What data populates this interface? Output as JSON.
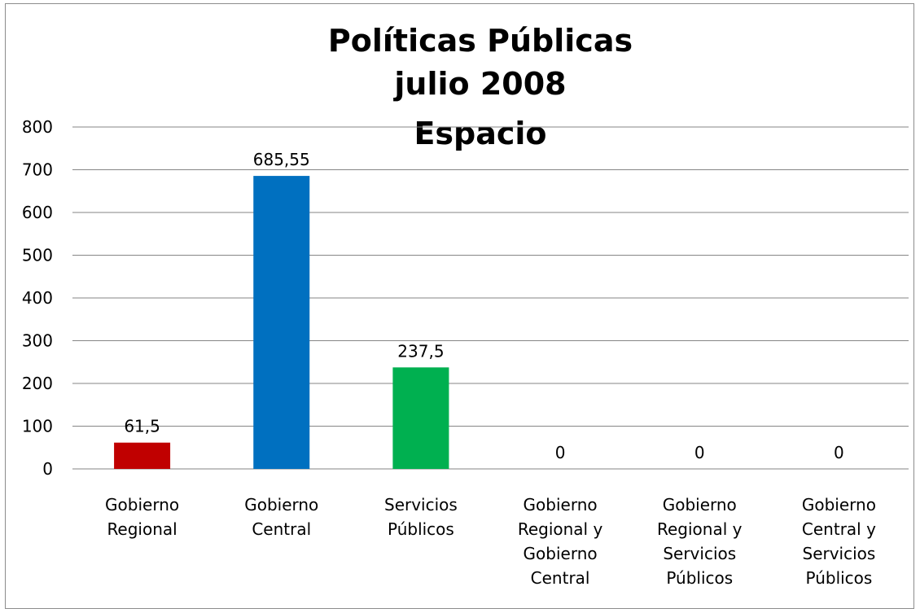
{
  "chart_data": {
    "type": "bar",
    "title_lines": [
      "Políticas Públicas",
      "julio 2008",
      "Espacio"
    ],
    "categories": [
      [
        "Gobierno",
        "Regional"
      ],
      [
        "Gobierno",
        "Central"
      ],
      [
        "Servicios",
        "Públicos"
      ],
      [
        "Gobierno",
        "Regional y",
        "Gobierno",
        "Central"
      ],
      [
        "Gobierno",
        "Regional y",
        "Servicios",
        "Públicos"
      ],
      [
        "Gobierno",
        "Central y",
        "Servicios",
        "Públicos"
      ]
    ],
    "values": [
      61.5,
      685.55,
      237.5,
      0,
      0,
      0
    ],
    "data_labels": [
      "61,5",
      "685,55",
      "237,5",
      "0",
      "0",
      "0"
    ],
    "colors": [
      "#c00000",
      "#0070c0",
      "#00b050",
      "#4f81bd",
      "#4f81bd",
      "#4f81bd"
    ],
    "ylim": [
      0,
      800
    ],
    "yticks": [
      0,
      100,
      200,
      300,
      400,
      500,
      600,
      700,
      800
    ],
    "ytick_labels": [
      "0",
      "100",
      "200",
      "300",
      "400",
      "500",
      "600",
      "700",
      "800"
    ],
    "grid": true,
    "legend": "none",
    "xlabel": "",
    "ylabel": ""
  }
}
